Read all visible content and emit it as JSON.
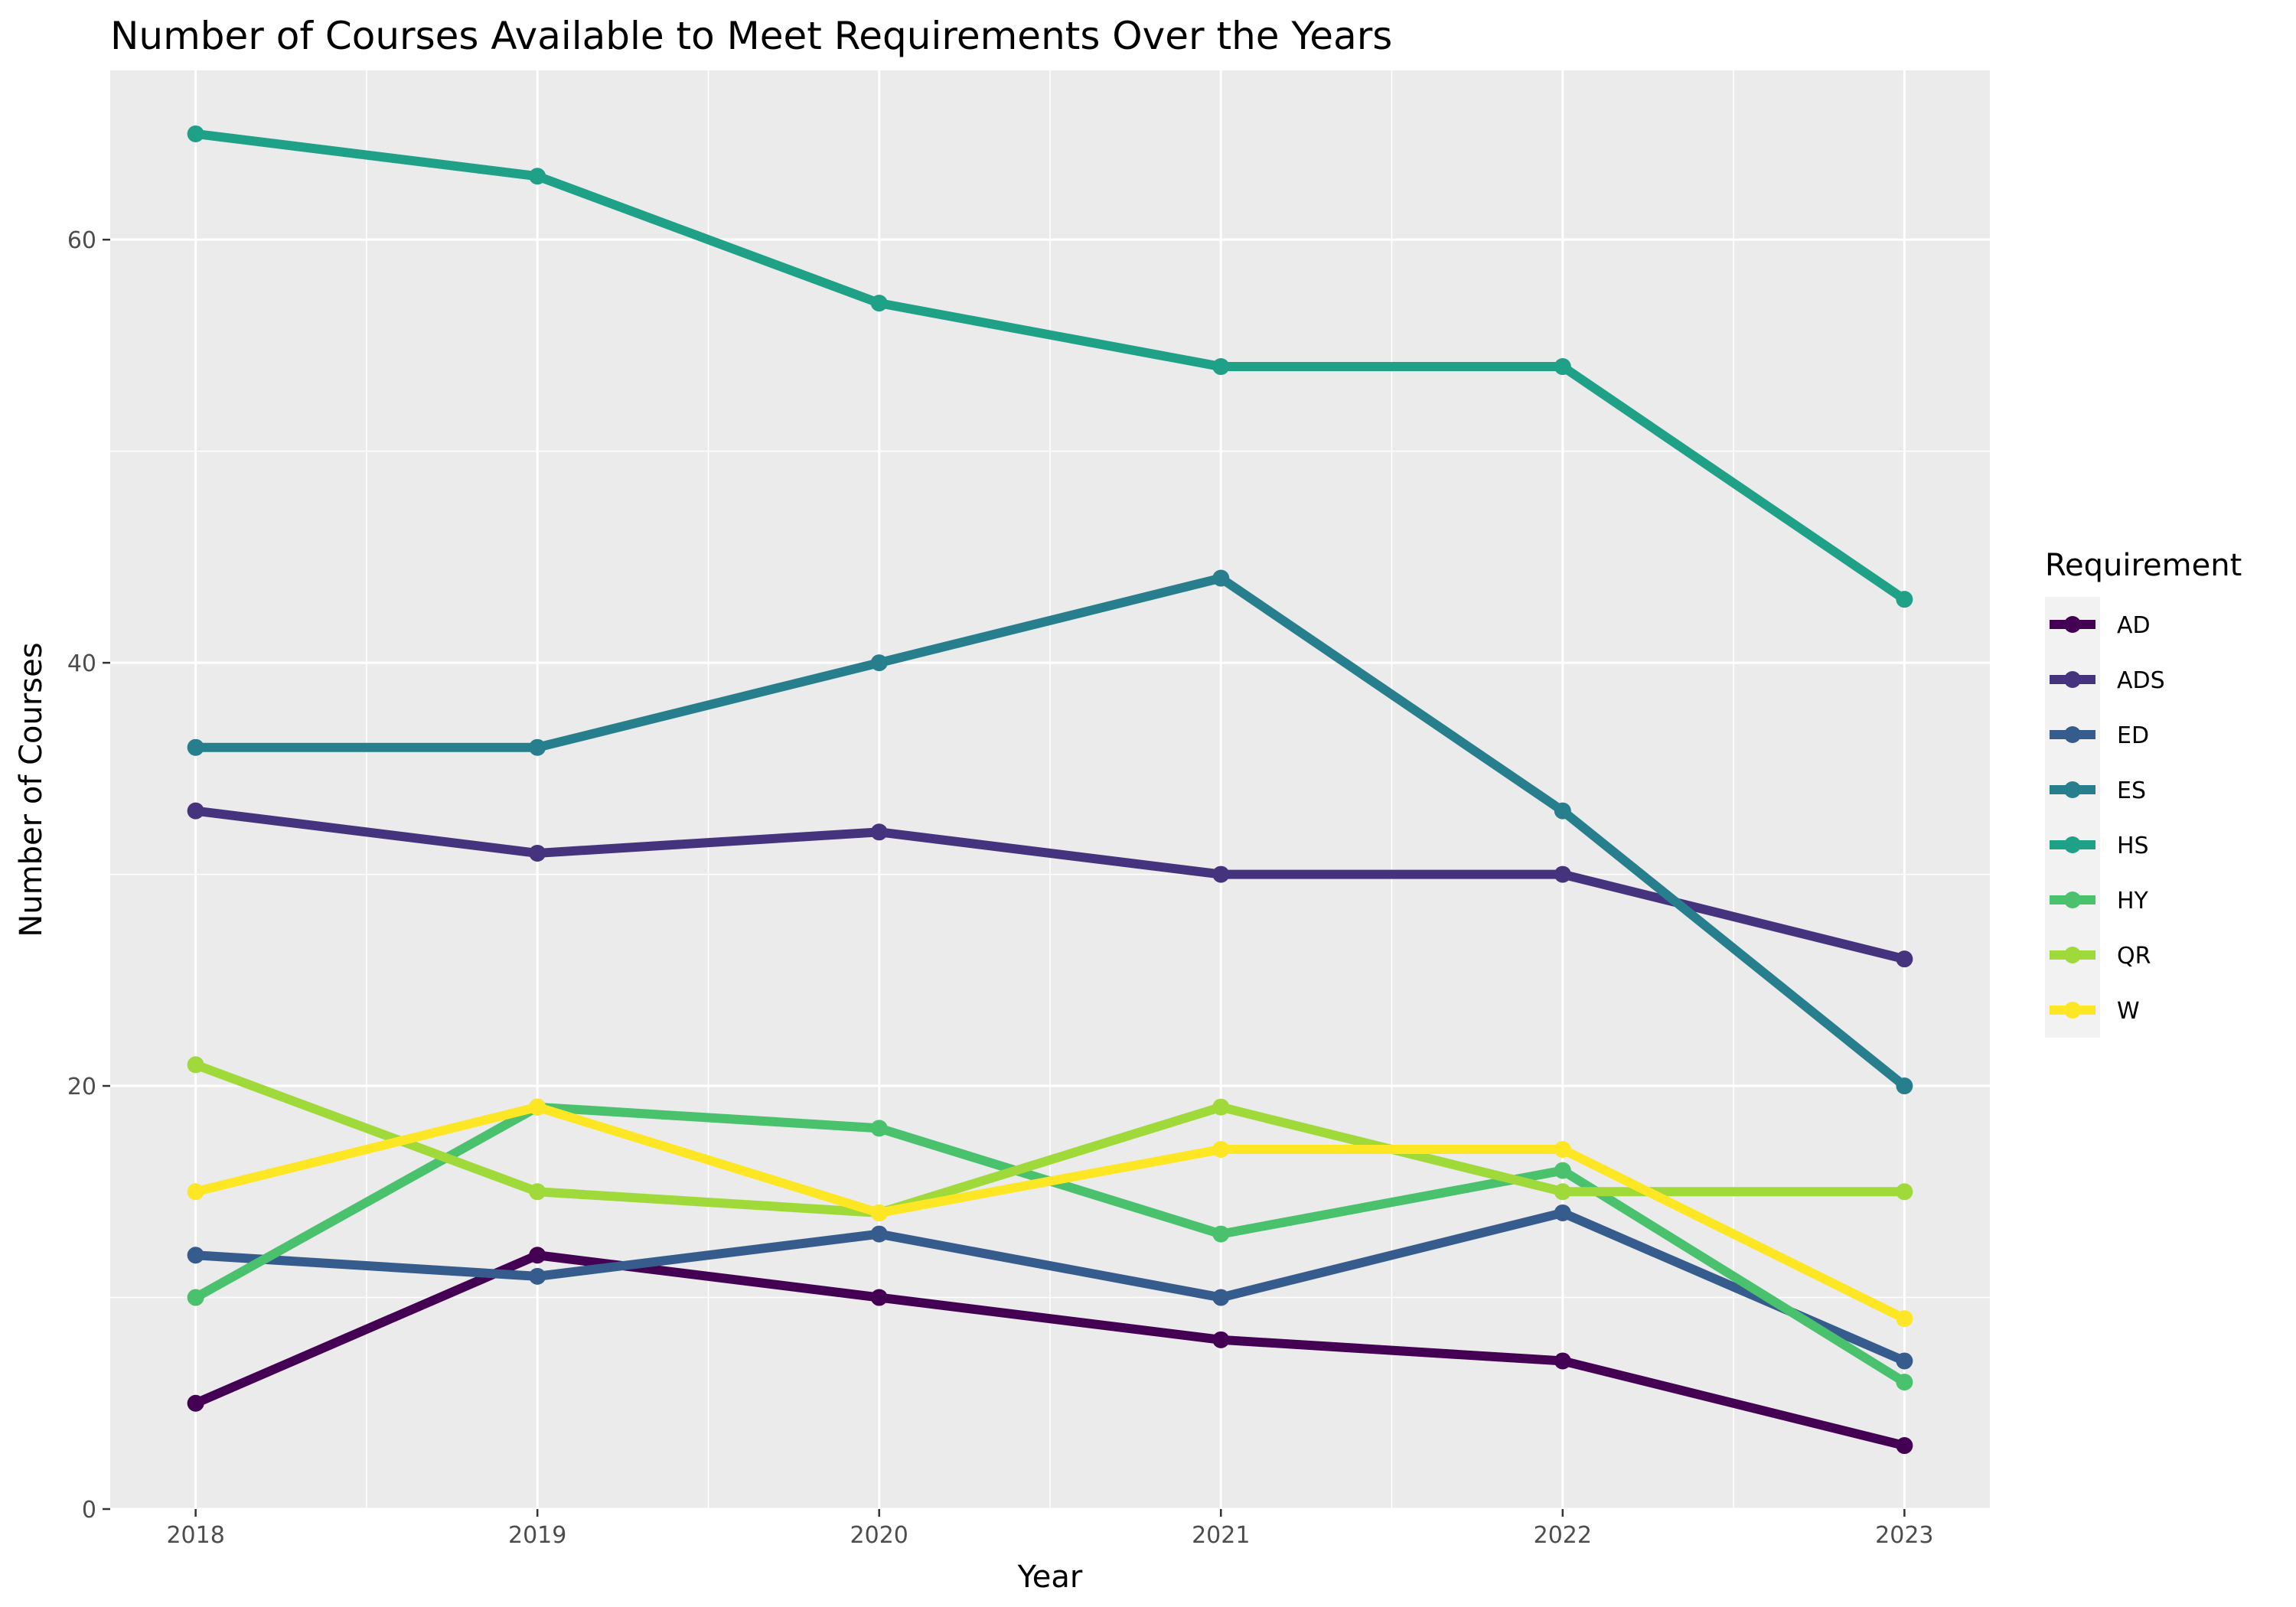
{
  "chart_data": {
    "type": "line",
    "title": "Number of Courses Available to Meet Requirements Over the Years",
    "xlabel": "Year",
    "ylabel": "Number of Courses",
    "x": [
      2018,
      2019,
      2020,
      2021,
      2022,
      2023
    ],
    "x_tick_labels": [
      "2018",
      "2019",
      "2020",
      "2021",
      "2022",
      "2023"
    ],
    "xlim": [
      2017.75,
      2023.25
    ],
    "ylim": [
      0,
      68
    ],
    "y_ticks": [
      0,
      20,
      40,
      60
    ],
    "y_tick_labels": [
      "0",
      "20",
      "40",
      "60"
    ],
    "grid": true,
    "legend": {
      "title": "Requirement",
      "position": "right"
    },
    "series": [
      {
        "name": "AD",
        "color": "#440154",
        "values": [
          5,
          12,
          10,
          8,
          7,
          3
        ]
      },
      {
        "name": "ADS",
        "color": "#46337E",
        "values": [
          33,
          31,
          32,
          30,
          30,
          26
        ]
      },
      {
        "name": "ED",
        "color": "#365C8D",
        "values": [
          12,
          11,
          13,
          10,
          14,
          7
        ]
      },
      {
        "name": "ES",
        "color": "#277F8E",
        "values": [
          36,
          36,
          40,
          44,
          33,
          20
        ]
      },
      {
        "name": "HS",
        "color": "#1FA187",
        "values": [
          65,
          63,
          57,
          54,
          54,
          43
        ]
      },
      {
        "name": "HY",
        "color": "#4AC16D",
        "values": [
          10,
          19,
          18,
          13,
          16,
          6
        ]
      },
      {
        "name": "QR",
        "color": "#9FDA3A",
        "values": [
          21,
          15,
          14,
          19,
          15,
          15
        ]
      },
      {
        "name": "W",
        "color": "#FDE725",
        "values": [
          15,
          19,
          14,
          17,
          17,
          9
        ]
      }
    ]
  }
}
